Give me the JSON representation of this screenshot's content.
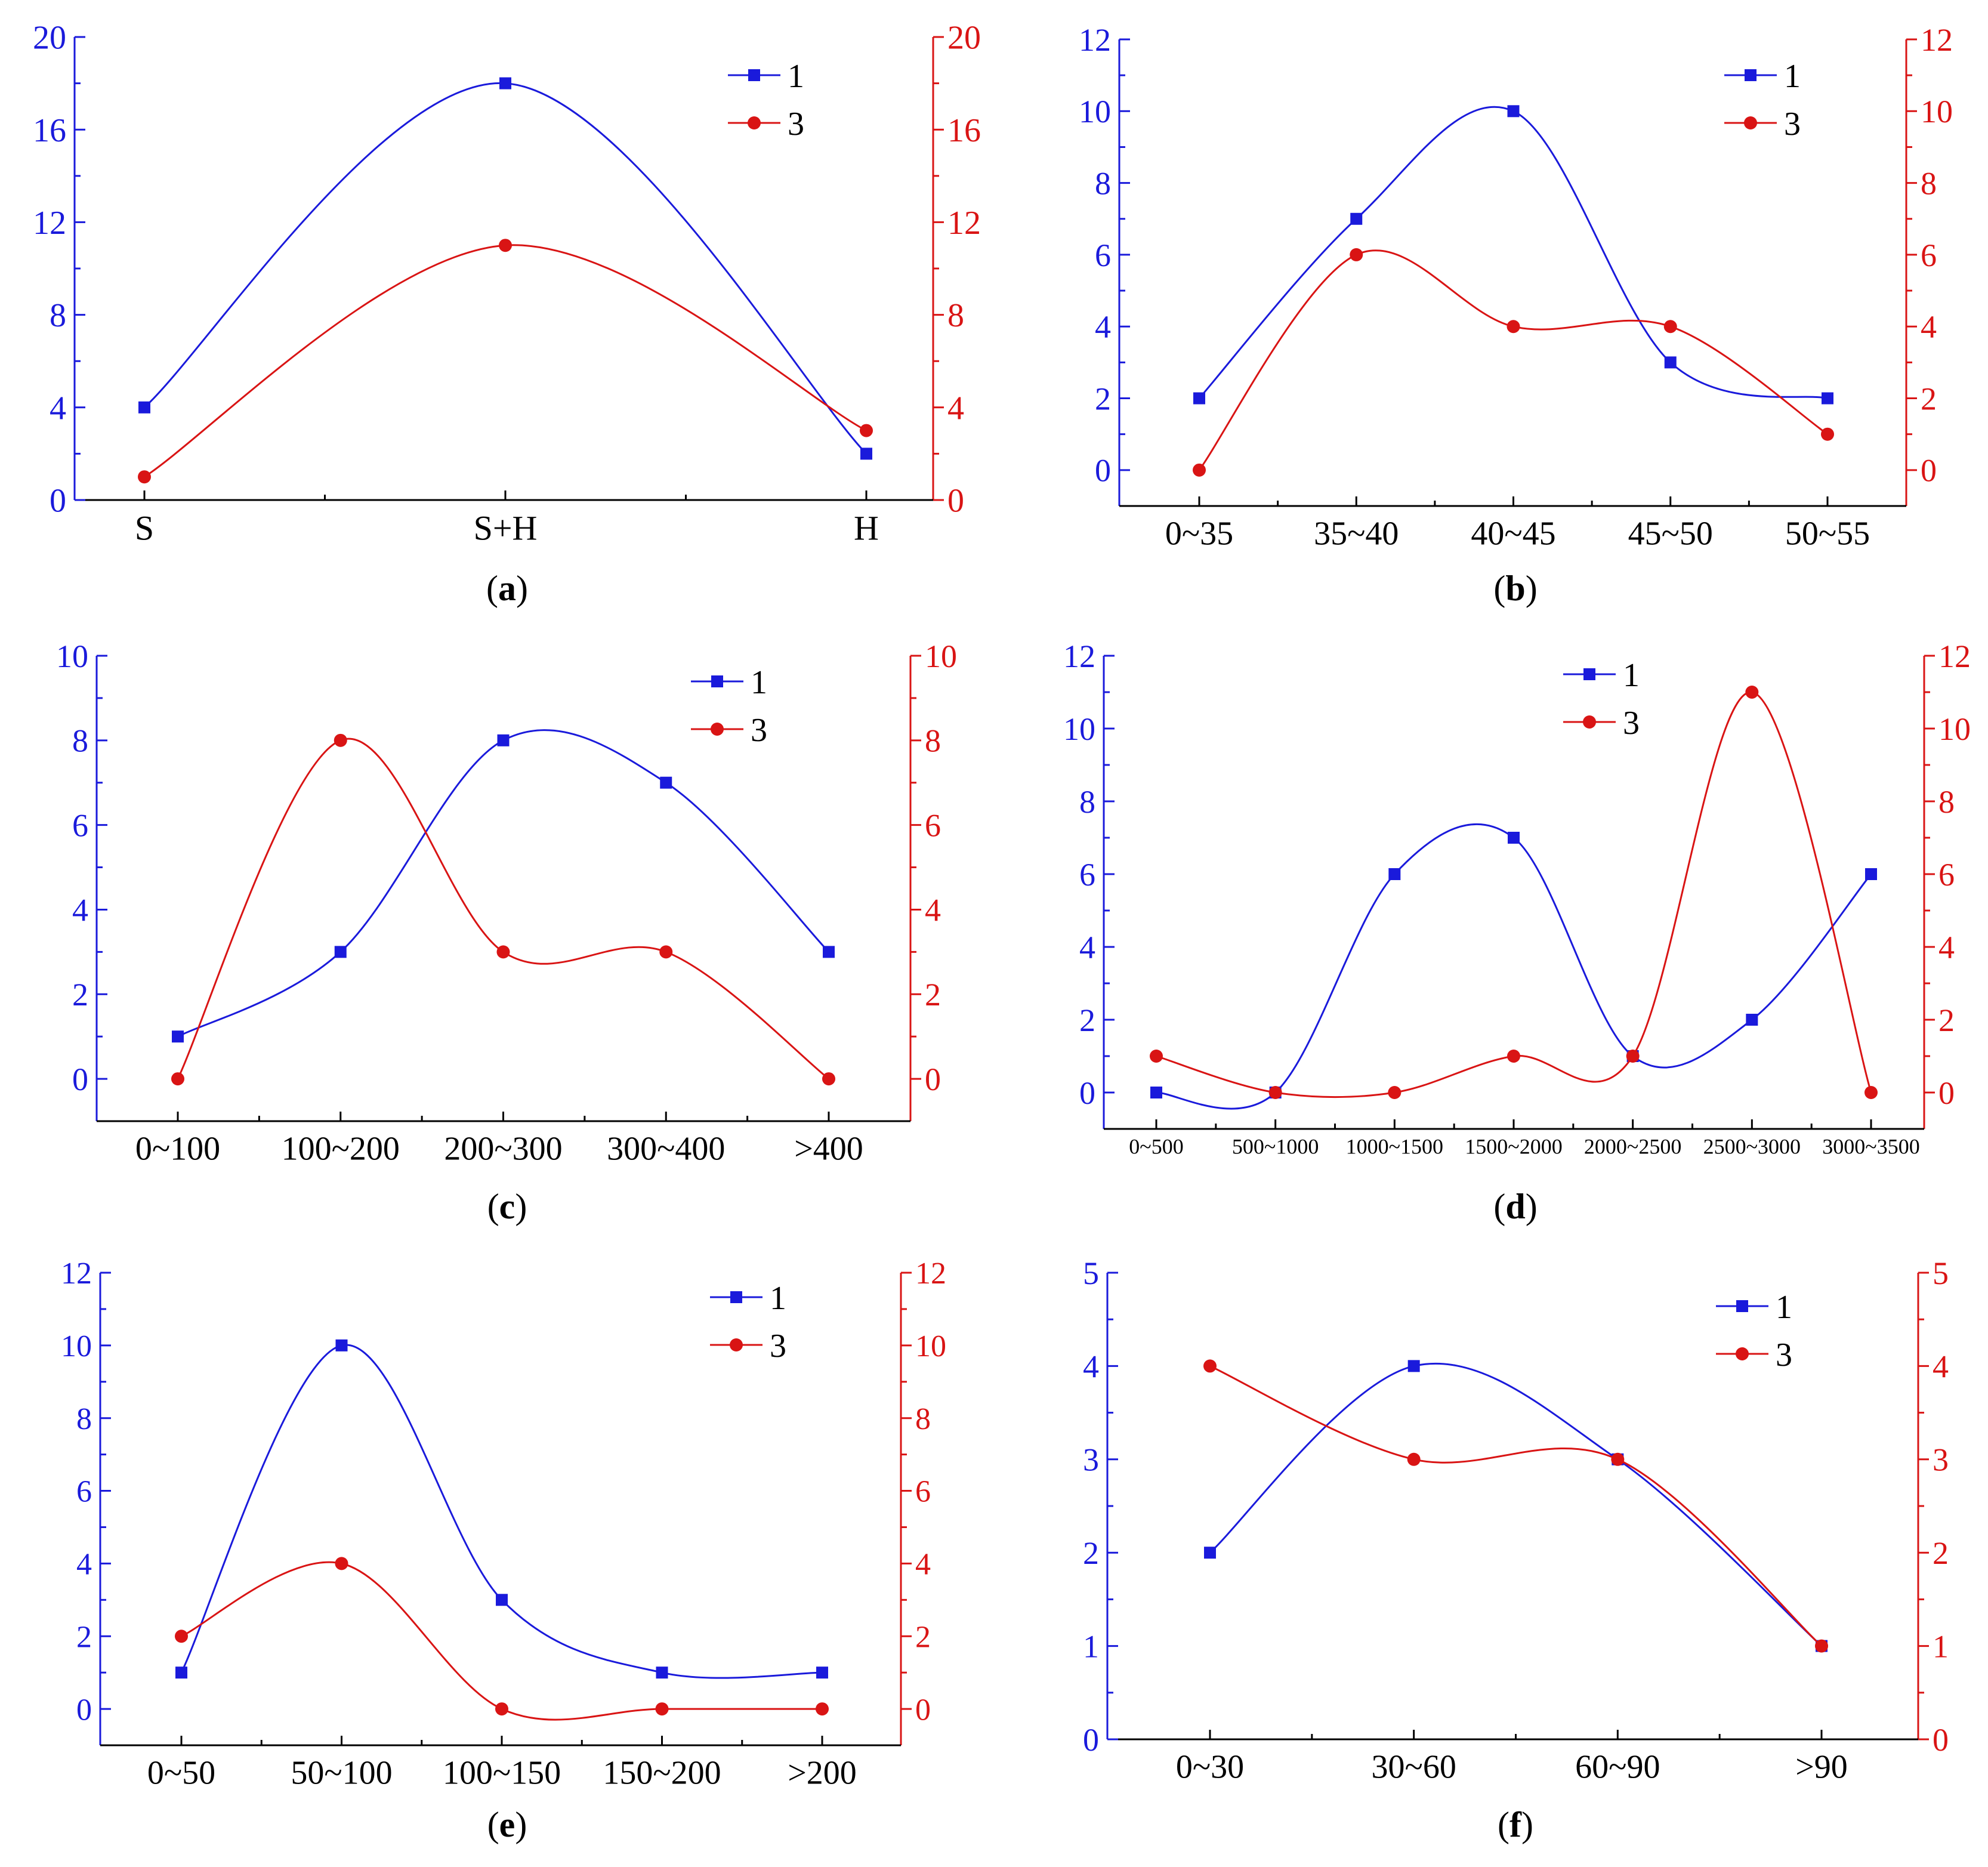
{
  "figure": {
    "colors": {
      "series1": "#1a1adb",
      "series3": "#d91414",
      "axis": "#000000",
      "left_axis": "#1a1adb",
      "right_axis": "#d91414"
    }
  },
  "chart_data": [
    {
      "id": "a",
      "type": "line",
      "panel_label": "a",
      "smooth": true,
      "categories": [
        "S",
        "S+H",
        "H"
      ],
      "series": [
        {
          "name": "1",
          "marker": "square",
          "axis": "left",
          "values": [
            4,
            18,
            2
          ]
        },
        {
          "name": "3",
          "marker": "circle",
          "axis": "right",
          "values": [
            1,
            11,
            3
          ]
        }
      ],
      "ylim": [
        0,
        20
      ],
      "yticks": [
        0,
        4,
        8,
        12,
        16,
        20
      ],
      "yticks_right": [
        0,
        4,
        8,
        12,
        16,
        20
      ],
      "legend": "top-right",
      "title": "",
      "xlabel": "",
      "ylabel": ""
    },
    {
      "id": "b",
      "type": "line",
      "panel_label": "b",
      "smooth": true,
      "categories": [
        "0~35",
        "35~40",
        "40~45",
        "45~50",
        "50~55"
      ],
      "series": [
        {
          "name": "1",
          "marker": "square",
          "axis": "left",
          "values": [
            2,
            7,
            10,
            3,
            2
          ]
        },
        {
          "name": "3",
          "marker": "circle",
          "axis": "right",
          "values": [
            0,
            6,
            4,
            4,
            1
          ]
        }
      ],
      "ylim": [
        -1,
        12
      ],
      "yticks": [
        0,
        2,
        4,
        6,
        8,
        10,
        12
      ],
      "yticks_right": [
        0,
        2,
        4,
        6,
        8,
        10,
        12
      ],
      "legend": "top-right",
      "title": "",
      "xlabel": "",
      "ylabel": ""
    },
    {
      "id": "c",
      "type": "line",
      "panel_label": "c",
      "smooth": true,
      "categories": [
        "0~100",
        "100~200",
        "200~300",
        "300~400",
        ">400"
      ],
      "series": [
        {
          "name": "1",
          "marker": "square",
          "axis": "left",
          "values": [
            1,
            3,
            8,
            7,
            3
          ]
        },
        {
          "name": "3",
          "marker": "circle",
          "axis": "right",
          "values": [
            0,
            8,
            3,
            3,
            0
          ]
        }
      ],
      "ylim": [
        -1,
        10
      ],
      "yticks": [
        0,
        2,
        4,
        6,
        8,
        10
      ],
      "yticks_right": [
        0,
        2,
        4,
        6,
        8,
        10
      ],
      "legend": "top-right",
      "title": "",
      "xlabel": "",
      "ylabel": ""
    },
    {
      "id": "d",
      "type": "line",
      "panel_label": "d",
      "smooth": true,
      "categories": [
        "0~500",
        "500~1000",
        "1000~1500",
        "1500~2000",
        "2000~2500",
        "2500~3000",
        "3000~3500"
      ],
      "series": [
        {
          "name": "1",
          "marker": "square",
          "axis": "left",
          "values": [
            0,
            0,
            6,
            7,
            1,
            2,
            6
          ]
        },
        {
          "name": "3",
          "marker": "circle",
          "axis": "right",
          "values": [
            1,
            0,
            0,
            1,
            1,
            11,
            0
          ]
        }
      ],
      "ylim": [
        -1,
        12
      ],
      "yticks": [
        0,
        2,
        4,
        6,
        8,
        10,
        12
      ],
      "yticks_right": [
        0,
        2,
        4,
        6,
        8,
        10,
        12
      ],
      "legend": "top-right",
      "title": "",
      "xlabel": "",
      "ylabel": ""
    },
    {
      "id": "e",
      "type": "line",
      "panel_label": "e",
      "smooth": true,
      "categories": [
        "0~50",
        "50~100",
        "100~150",
        "150~200",
        ">200"
      ],
      "series": [
        {
          "name": "1",
          "marker": "square",
          "axis": "left",
          "values": [
            1,
            10,
            3,
            1,
            1
          ]
        },
        {
          "name": "3",
          "marker": "circle",
          "axis": "right",
          "values": [
            2,
            4,
            0,
            0,
            0
          ]
        }
      ],
      "ylim": [
        -1,
        12
      ],
      "yticks": [
        0,
        2,
        4,
        6,
        8,
        10,
        12
      ],
      "yticks_right": [
        0,
        2,
        4,
        6,
        8,
        10,
        12
      ],
      "legend": "top-right",
      "title": "",
      "xlabel": "",
      "ylabel": ""
    },
    {
      "id": "f",
      "type": "line",
      "panel_label": "f",
      "smooth": true,
      "categories": [
        "0~30",
        "30~60",
        "60~90",
        ">90"
      ],
      "series": [
        {
          "name": "1",
          "marker": "square",
          "axis": "left",
          "values": [
            2,
            4,
            3,
            1
          ]
        },
        {
          "name": "3",
          "marker": "circle",
          "axis": "right",
          "values": [
            4,
            3,
            3,
            1
          ]
        }
      ],
      "ylim": [
        0,
        5
      ],
      "yticks": [
        0,
        1,
        2,
        3,
        4,
        5
      ],
      "yticks_right": [
        0,
        1,
        2,
        3,
        4,
        5
      ],
      "legend": "top-right",
      "title": "",
      "xlabel": "",
      "ylabel": ""
    }
  ]
}
